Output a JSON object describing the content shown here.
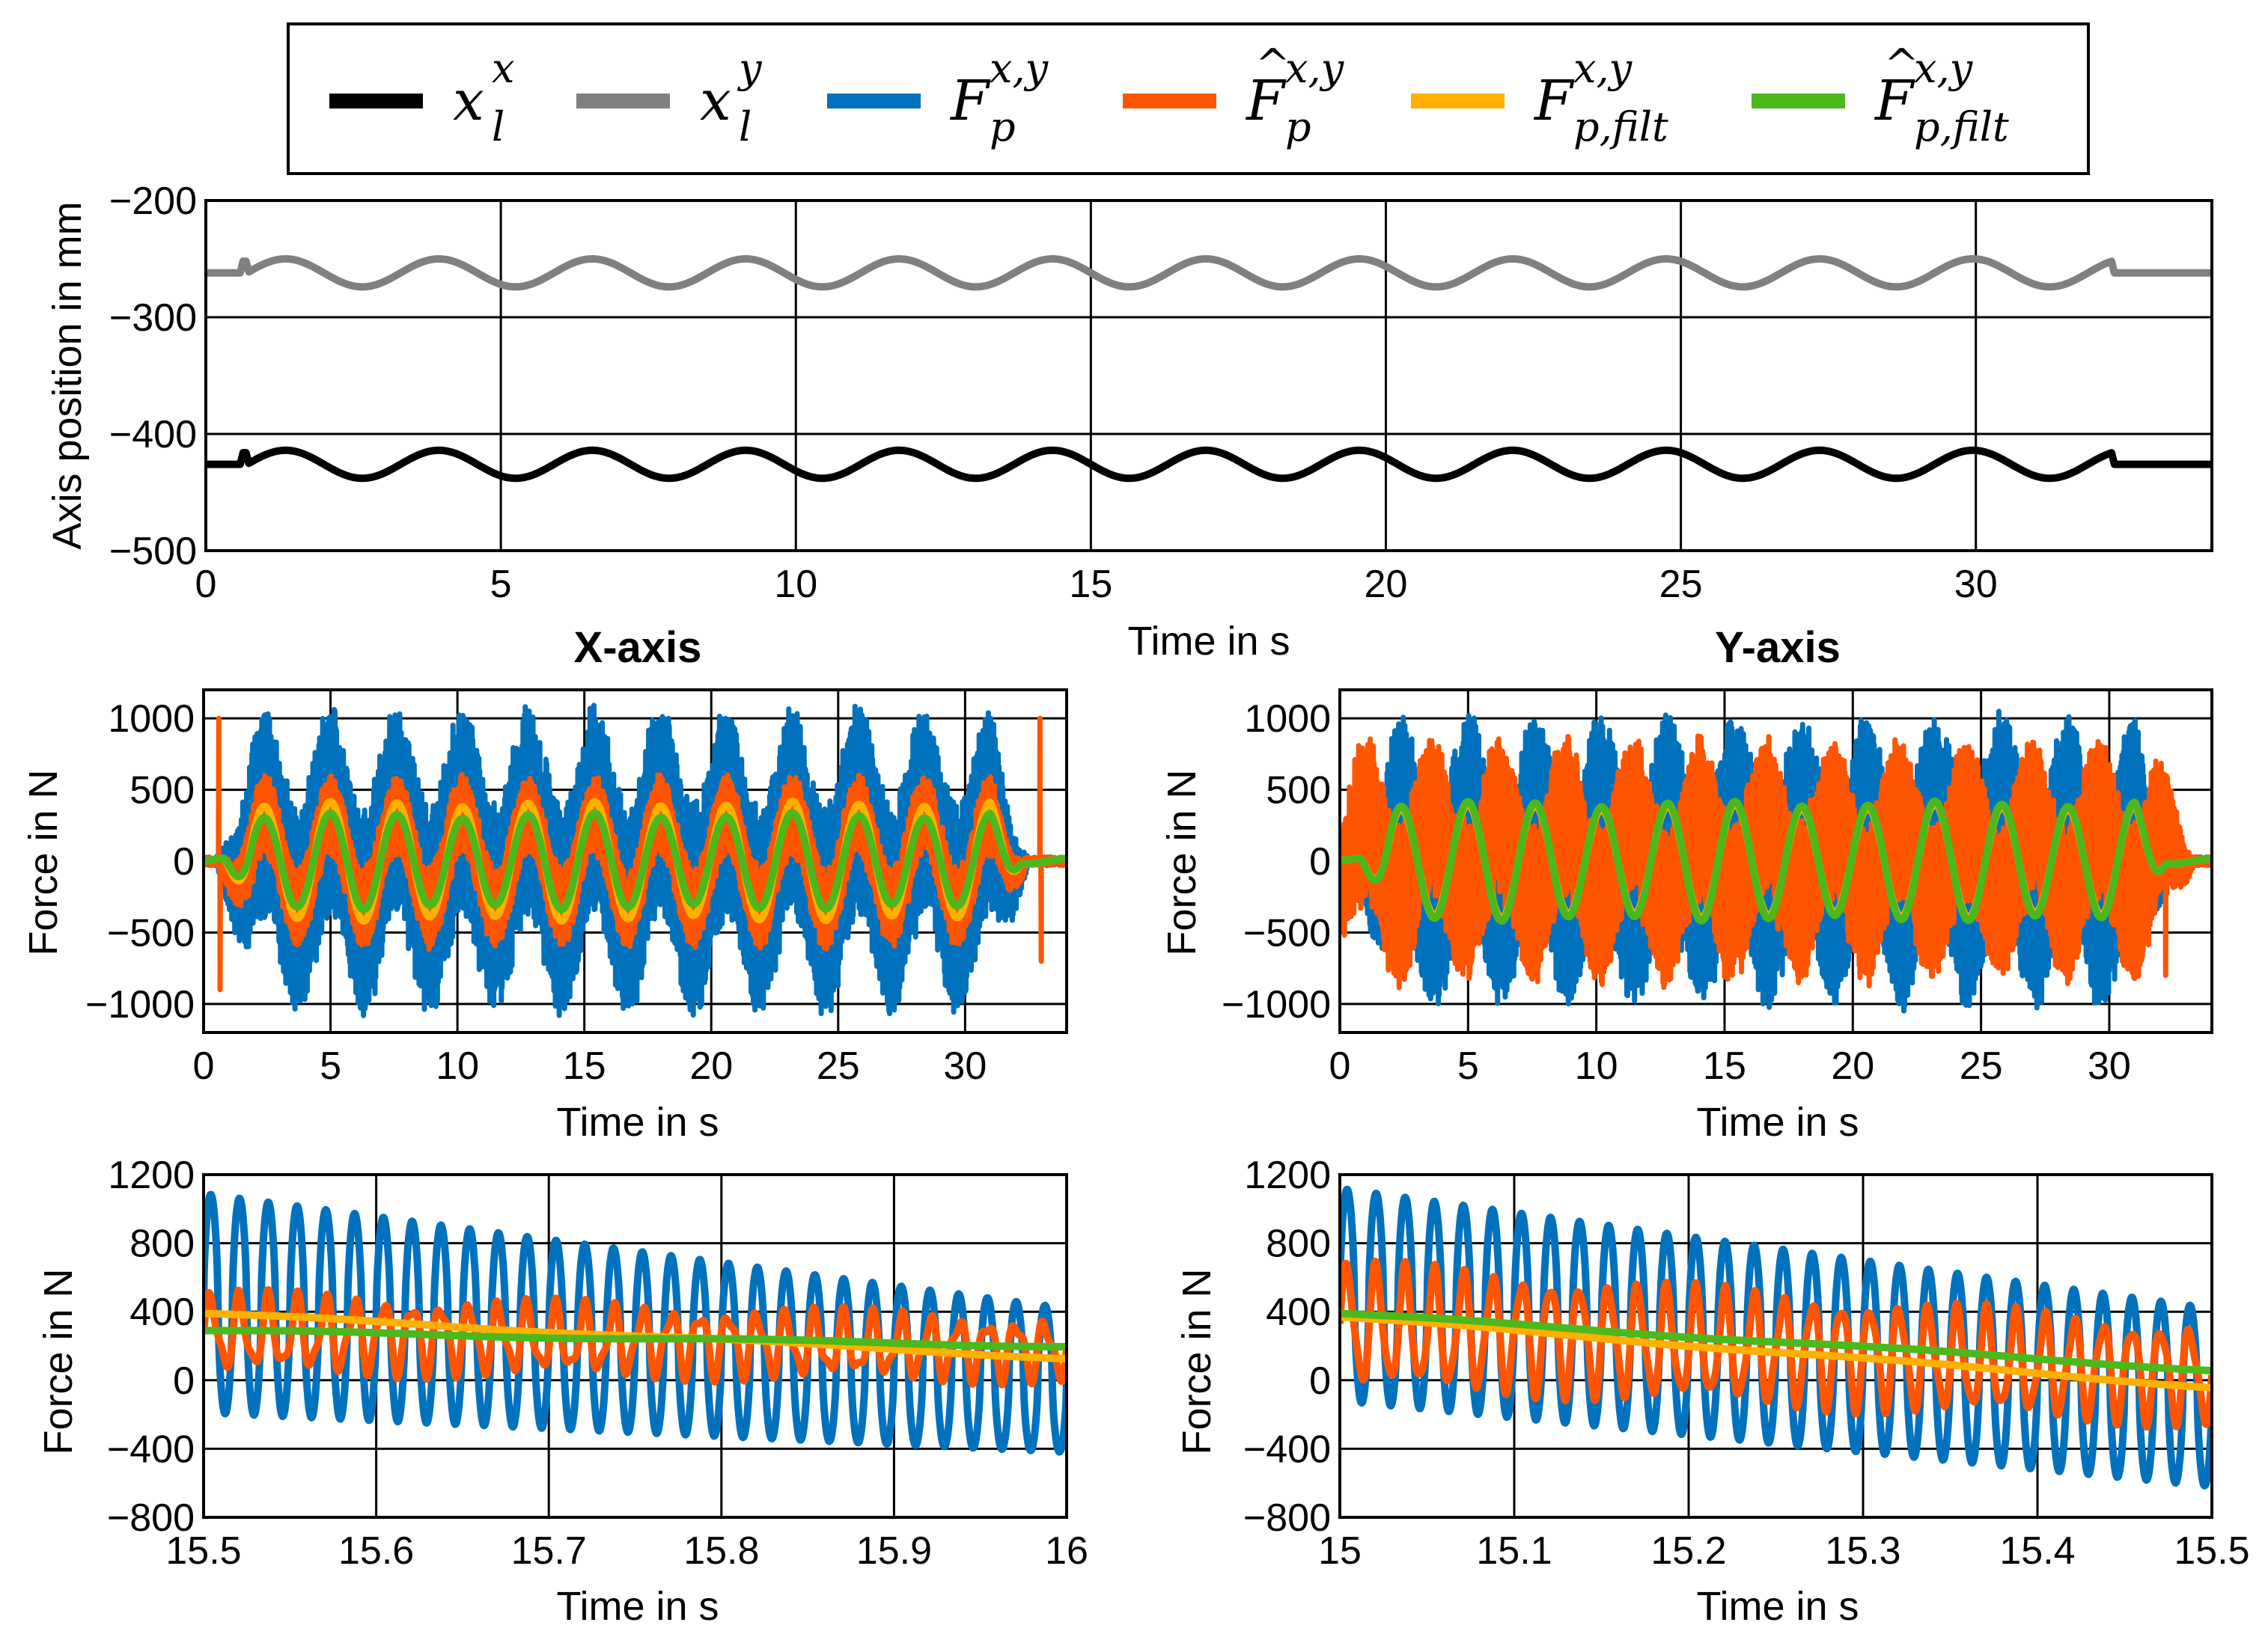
{
  "legend": {
    "entries": [
      {
        "name": "legend-xlx",
        "base": "x",
        "sub": "l",
        "sup": "x",
        "hat": false,
        "color": "#000000"
      },
      {
        "name": "legend-xly",
        "base": "x",
        "sub": "l",
        "sup": "y",
        "hat": false,
        "color": "#808080"
      },
      {
        "name": "legend-fp",
        "base": "F",
        "sub": "p",
        "sup": "x,y",
        "hat": false,
        "color": "#0072BD"
      },
      {
        "name": "legend-fp-hat",
        "base": "F",
        "sub": "p",
        "sup": "x,y",
        "hat": true,
        "color": "#FF5500"
      },
      {
        "name": "legend-fp-filt",
        "base": "F",
        "sub": "p,filt",
        "sup": "x,y",
        "hat": false,
        "color": "#FFB000"
      },
      {
        "name": "legend-fp-hat-filt",
        "base": "F",
        "sub": "p,filt",
        "sup": "x,y",
        "hat": true,
        "color": "#4CB81C"
      }
    ]
  },
  "chart_data": [
    {
      "id": "position",
      "type": "line",
      "title": "",
      "xlabel": "Time in s",
      "ylabel": "Axis position in mm",
      "xlim": [
        0,
        34
      ],
      "ylim": [
        -500,
        -200
      ],
      "xticks": [
        0,
        5,
        10,
        15,
        20,
        25,
        30
      ],
      "yticks": [
        -500,
        -400,
        -300,
        -200
      ],
      "xtick_labels": [
        "0",
        "5",
        "10",
        "15",
        "20",
        "25",
        "30"
      ],
      "ytick_labels": [
        "−500",
        "−400",
        "−300",
        "−200"
      ],
      "grid": true,
      "series": [
        {
          "name": "x_l^x",
          "color": "#000000",
          "model": {
            "kind": "sine",
            "t0": 0.7,
            "t1": 32.3,
            "base": -426,
            "amp": 12,
            "period": 2.6,
            "rest": -426
          }
        },
        {
          "name": "x_l^y",
          "color": "#808080",
          "model": {
            "kind": "sine",
            "t0": 0.7,
            "t1": 32.3,
            "base": -262,
            "amp": 12,
            "period": 2.6,
            "rest": -262
          }
        }
      ]
    },
    {
      "id": "x-force",
      "type": "line",
      "title": "X-axis",
      "xlabel": "Time in s",
      "ylabel": "Force in N",
      "xlim": [
        0,
        34
      ],
      "ylim": [
        -1200,
        1200
      ],
      "xticks": [
        0,
        5,
        10,
        15,
        20,
        25,
        30
      ],
      "yticks": [
        -1000,
        -500,
        0,
        500,
        1000
      ],
      "xtick_labels": [
        "0",
        "5",
        "10",
        "15",
        "20",
        "25",
        "30"
      ],
      "ytick_labels": [
        "−1000",
        "−500",
        "0",
        "500",
        "1000"
      ],
      "grid": true,
      "series": [
        {
          "name": "F_p",
          "color": "#0072BD",
          "model": {
            "kind": "envelope",
            "t0": 2.0,
            "t1": 31.0,
            "period": 2.6,
            "center": 0,
            "amp": 350,
            "noise": 650,
            "dt": 0.015
          }
        },
        {
          "name": "F_p hat",
          "color": "#FF5500",
          "model": {
            "kind": "envelope",
            "t0": 2.0,
            "t1": 31.0,
            "period": 2.6,
            "center": 0,
            "amp": 330,
            "noise": 240,
            "dt": 0.015,
            "spikes": [
              [
                0.6,
                1000
              ],
              [
                0.65,
                -900
              ],
              [
                32.95,
                1000
              ],
              [
                33.0,
                -700
              ]
            ]
          }
        },
        {
          "name": "F_p,filt",
          "color": "#FFB000",
          "model": {
            "kind": "smooth",
            "t0": 2.0,
            "t1": 31.0,
            "period": 2.6,
            "amp": 400
          }
        },
        {
          "name": "F_p,filt hat",
          "color": "#4CB81C",
          "model": {
            "kind": "smooth",
            "t0": 2.0,
            "t1": 31.0,
            "period": 2.6,
            "amp": 320
          }
        }
      ]
    },
    {
      "id": "y-force",
      "type": "line",
      "title": "Y-axis",
      "xlabel": "Time in s",
      "ylabel": "Force in N",
      "xlim": [
        0,
        34
      ],
      "ylim": [
        -1200,
        1200
      ],
      "xticks": [
        0,
        5,
        10,
        15,
        20,
        25,
        30
      ],
      "yticks": [
        -1000,
        -500,
        0,
        500,
        1000
      ],
      "xtick_labels": [
        "0",
        "5",
        "10",
        "15",
        "20",
        "25",
        "30"
      ],
      "ytick_labels": [
        "−1000",
        "−500",
        "0",
        "500",
        "1000"
      ],
      "grid": true,
      "series": [
        {
          "name": "F_p",
          "color": "#0072BD",
          "model": {
            "kind": "envelope",
            "t0": 2.0,
            "t1": 31.0,
            "period": 2.6,
            "center": 0,
            "amp": 330,
            "noise": 620,
            "dt": 0.015
          }
        },
        {
          "name": "F_p hat",
          "color": "#FF5500",
          "model": {
            "kind": "envelope",
            "t0": 0.6,
            "t1": 31.8,
            "period": 2.6,
            "center": 0,
            "amp": 300,
            "noise": 500,
            "dt": 0.015,
            "spikes": [
              [
                32.2,
                -800
              ]
            ]
          }
        },
        {
          "name": "F_p,filt",
          "color": "#FFB000",
          "model": {
            "kind": "smooth",
            "t0": 2.0,
            "t1": 31.0,
            "period": 2.6,
            "amp": 380
          }
        },
        {
          "name": "F_p,filt hat",
          "color": "#4CB81C",
          "model": {
            "kind": "smooth",
            "t0": 2.0,
            "t1": 31.0,
            "period": 2.6,
            "amp": 400
          }
        }
      ]
    },
    {
      "id": "x-zoom",
      "type": "line",
      "title": "",
      "xlabel": "Time in s",
      "ylabel": "Force in N",
      "xlim": [
        15.5,
        16
      ],
      "ylim": [
        -800,
        1200
      ],
      "xticks": [
        15.5,
        15.6,
        15.7,
        15.8,
        15.9,
        16
      ],
      "yticks": [
        -800,
        -400,
        0,
        400,
        800,
        1200
      ],
      "xtick_labels": [
        "15.5",
        "15.6",
        "15.7",
        "15.8",
        "15.9",
        "16"
      ],
      "ytick_labels": [
        "−800",
        "−400",
        "0",
        "400",
        "800",
        "1200"
      ],
      "grid": true,
      "series": [
        {
          "name": "F_p",
          "color": "#0072BD",
          "model": {
            "kind": "zoom",
            "freq": 60,
            "c0": 450,
            "c1": 0,
            "a0": 640,
            "a1": 420,
            "sharp": true
          }
        },
        {
          "name": "F_p hat",
          "color": "#FF5500",
          "model": {
            "kind": "zoom",
            "freq": 60,
            "c0": 280,
            "c1": 180,
            "a0": 200,
            "a1": 150,
            "sharp": false
          }
        },
        {
          "name": "F_p,filt",
          "color": "#FFB000",
          "model": {
            "kind": "linear",
            "y0": 390,
            "y1": 130
          }
        },
        {
          "name": "F_p,filt hat",
          "color": "#4CB81C",
          "model": {
            "kind": "linear",
            "y0": 290,
            "y1": 200
          }
        }
      ]
    },
    {
      "id": "y-zoom",
      "type": "line",
      "title": "",
      "xlabel": "Time in s",
      "ylabel": "Force in N",
      "xlim": [
        15,
        15.5
      ],
      "ylim": [
        -800,
        1200
      ],
      "xticks": [
        15,
        15.1,
        15.2,
        15.3,
        15.4,
        15.5
      ],
      "yticks": [
        -800,
        -400,
        0,
        400,
        800,
        1200
      ],
      "xtick_labels": [
        "15",
        "15.1",
        "15.2",
        "15.3",
        "15.4",
        "15.5"
      ],
      "ytick_labels": [
        "−800",
        "−400",
        "0",
        "400",
        "800",
        "1200"
      ],
      "grid": true,
      "series": [
        {
          "name": "F_p",
          "color": "#0072BD",
          "model": {
            "kind": "zoom",
            "freq": 60,
            "c0": 500,
            "c1": -100,
            "a0": 620,
            "a1": 520,
            "sharp": true
          }
        },
        {
          "name": "F_p hat",
          "color": "#FF5500",
          "model": {
            "kind": "zoom",
            "freq": 60,
            "c0": 330,
            "c1": 30,
            "a0": 330,
            "a1": 260,
            "sharp": false
          }
        },
        {
          "name": "F_p,filt",
          "color": "#FFB000",
          "model": {
            "kind": "linear",
            "y0": 370,
            "y1": -40
          }
        },
        {
          "name": "F_p,filt hat",
          "color": "#4CB81C",
          "model": {
            "kind": "linear",
            "y0": 390,
            "y1": 60
          }
        }
      ]
    }
  ]
}
